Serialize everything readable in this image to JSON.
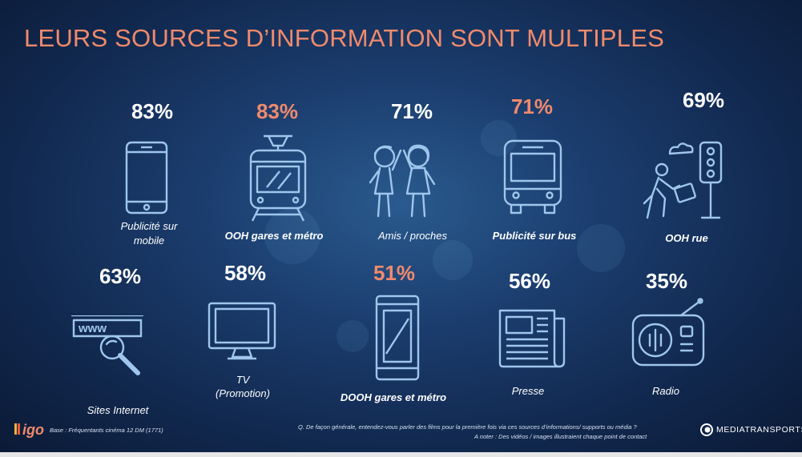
{
  "title": "LEURS SOURCES D’INFORMATION SONT MULTIPLES",
  "items": [
    {
      "pct": "83%",
      "label": "Publicité sur mobile",
      "icon": "smartphone-icon"
    },
    {
      "pct": "83%",
      "label": "OOH gares et métro",
      "icon": "tram-icon"
    },
    {
      "pct": "71%",
      "label": "Amis / proches",
      "icon": "friends-icon"
    },
    {
      "pct": "71%",
      "label": "Publicité sur bus",
      "icon": "bus-icon"
    },
    {
      "pct": "69%",
      "label": "OOH rue",
      "icon": "pedestrian-traffic-light-icon"
    },
    {
      "pct": "63%",
      "label": "Sites Internet",
      "icon": "www-search-icon"
    },
    {
      "pct": "58%",
      "label_line1": "TV",
      "label_line2": "(Promotion)",
      "icon": "tv-icon"
    },
    {
      "pct": "51%",
      "label": "DOOH gares et métro",
      "icon": "digital-screen-icon"
    },
    {
      "pct": "56%",
      "label": "Presse",
      "icon": "newspaper-icon"
    },
    {
      "pct": "35%",
      "label": "Radio",
      "icon": "radio-icon"
    }
  ],
  "footer": {
    "logo_left": "igo",
    "base": "Base : Fréquentants cinéma 12 DM (1771)",
    "question": "Q. De façon générale, entendez-vous parler des films pour la première fois via ces sources d’informations/ supports ou média ?",
    "note": "A noter : Des vidéos / images illustraient chaque point de contact",
    "logo_right": "MEDIATRANSPORTS"
  },
  "colors": {
    "accent": "#f08a6c",
    "text": "#ffffff",
    "icon": "#9fc6ec",
    "background": "#1b3d6e"
  }
}
